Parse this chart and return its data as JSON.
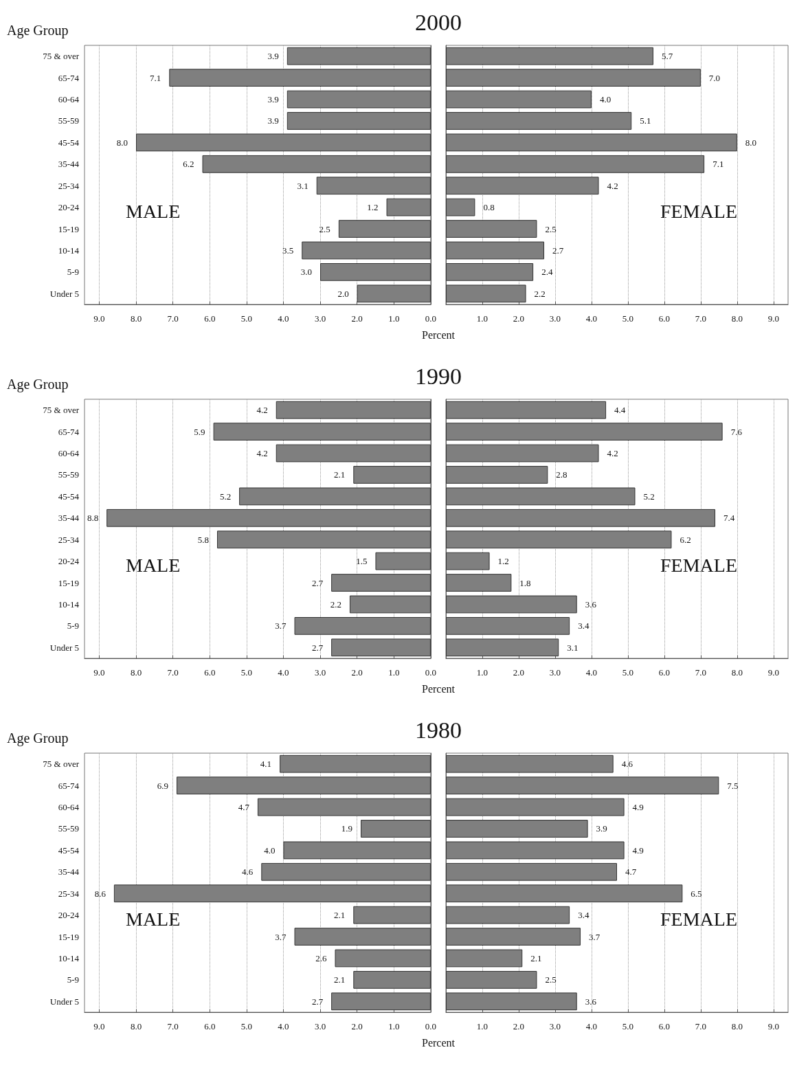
{
  "chart_data": [
    {
      "type": "bar",
      "orientation": "horizontal",
      "title": "2000",
      "ylabel": "Age Group",
      "xlabel": "Percent",
      "grid": "x",
      "categories": [
        "75 & over",
        "65-74",
        "60-64",
        "55-59",
        "45-54",
        "35-44",
        "25-34",
        "20-24",
        "15-19",
        "10-14",
        "5-9",
        "Under 5"
      ],
      "xlim": [
        9.4,
        0
      ],
      "xticks": [
        {
          "value": 9,
          "label": "9.0"
        },
        {
          "value": 8,
          "label": "8.0"
        },
        {
          "value": 7,
          "label": "7.0"
        },
        {
          "value": 6,
          "label": "6.0"
        },
        {
          "value": 5,
          "label": "5.0"
        },
        {
          "value": 4,
          "label": "4.0"
        },
        {
          "value": 3,
          "label": "3.0"
        },
        {
          "value": 2,
          "label": "2.0"
        },
        {
          "value": 1,
          "label": "1.0"
        },
        {
          "value": 0,
          "label": "0.0"
        }
      ],
      "series": [
        {
          "color": "#7f7f7f",
          "values": [
            3.9,
            7.1,
            3.9,
            3.9,
            8.0,
            6.2,
            3.1,
            1.2,
            2.5,
            3.5,
            3.0,
            2.0
          ],
          "value_labels": [
            "3.9",
            "7.1",
            "3.9",
            "3.9",
            "8.0",
            "6.2",
            "3.1",
            "1.2",
            "2.5",
            "3.5",
            "3.0",
            "2.0"
          ]
        }
      ],
      "annotations": [
        "MALE"
      ]
    },
    {
      "type": "bar",
      "orientation": "horizontal",
      "grid": "x",
      "categories": [
        null,
        null,
        null,
        null,
        null,
        null,
        null,
        null,
        null,
        null,
        null,
        null
      ],
      "xlim": [
        0,
        9.4
      ],
      "xticks": [
        {
          "value": 1,
          "label": "1.0"
        },
        {
          "value": 2,
          "label": "2.0"
        },
        {
          "value": 3,
          "label": "3.0"
        },
        {
          "value": 4,
          "label": "4.0"
        },
        {
          "value": 5,
          "label": "5.0"
        },
        {
          "value": 6,
          "label": "6.0"
        },
        {
          "value": 7,
          "label": "7.0"
        },
        {
          "value": 8,
          "label": "8.0"
        },
        {
          "value": 9,
          "label": "9.0"
        }
      ],
      "series": [
        {
          "color": "#7f7f7f",
          "values": [
            5.7,
            7.0,
            4.0,
            5.1,
            8.0,
            7.1,
            4.2,
            0.8,
            2.5,
            2.7,
            2.4,
            2.2
          ],
          "value_labels": [
            "5.7",
            "7.0",
            "4.0",
            "5.1",
            "8.0",
            "7.1",
            "4.2",
            "0.8",
            "2.5",
            "2.7",
            "2.4",
            "2.2"
          ]
        }
      ],
      "annotations": [
        "FEMALE"
      ]
    },
    {
      "type": "bar",
      "orientation": "horizontal",
      "title": "1990",
      "ylabel": "Age Group",
      "xlabel": "Percent",
      "grid": "x",
      "categories": [
        "75 & over",
        "65-74",
        "60-64",
        "55-59",
        "45-54",
        "35-44",
        "25-34",
        "20-24",
        "15-19",
        "10-14",
        "5-9",
        "Under 5"
      ],
      "xlim": [
        9.4,
        0
      ],
      "xticks": [
        {
          "value": 9,
          "label": "9.0"
        },
        {
          "value": 8,
          "label": "8.0"
        },
        {
          "value": 7,
          "label": "7.0"
        },
        {
          "value": 6,
          "label": "6.0"
        },
        {
          "value": 5,
          "label": "5.0"
        },
        {
          "value": 4,
          "label": "4.0"
        },
        {
          "value": 3,
          "label": "3.0"
        },
        {
          "value": 2,
          "label": "2.0"
        },
        {
          "value": 1,
          "label": "1.0"
        },
        {
          "value": 0,
          "label": "0.0"
        }
      ],
      "series": [
        {
          "color": "#7f7f7f",
          "values": [
            4.2,
            5.9,
            4.2,
            2.1,
            5.2,
            8.8,
            5.8,
            1.5,
            2.7,
            2.2,
            3.7,
            2.7
          ],
          "value_labels": [
            "4.2",
            "5.9",
            "4.2",
            "2.1",
            "5.2",
            "8.8",
            "5.8",
            "1.5",
            "2.7",
            "2.2",
            "3.7",
            "2.7"
          ]
        }
      ],
      "annotations": [
        "MALE"
      ]
    },
    {
      "type": "bar",
      "orientation": "horizontal",
      "grid": "x",
      "categories": [
        null,
        null,
        null,
        null,
        null,
        null,
        null,
        null,
        null,
        null,
        null,
        null
      ],
      "xlim": [
        0,
        9.4
      ],
      "xticks": [
        {
          "value": 1,
          "label": "1.0"
        },
        {
          "value": 2,
          "label": "2.0"
        },
        {
          "value": 3,
          "label": "3.0"
        },
        {
          "value": 4,
          "label": "4.0"
        },
        {
          "value": 5,
          "label": "5.0"
        },
        {
          "value": 6,
          "label": "6.0"
        },
        {
          "value": 7,
          "label": "7.0"
        },
        {
          "value": 8,
          "label": "8.0"
        },
        {
          "value": 9,
          "label": "9.0"
        }
      ],
      "series": [
        {
          "color": "#7f7f7f",
          "values": [
            4.4,
            7.6,
            4.2,
            2.8,
            5.2,
            7.4,
            6.2,
            1.2,
            1.8,
            3.6,
            3.4,
            3.1
          ],
          "value_labels": [
            "4.4",
            "7.6",
            "4.2",
            "2.8",
            "5.2",
            "7.4",
            "6.2",
            "1.2",
            "1.8",
            "3.6",
            "3.4",
            "3.1"
          ]
        }
      ],
      "annotations": [
        "FEMALE"
      ]
    },
    {
      "type": "bar",
      "orientation": "horizontal",
      "title": "1980",
      "ylabel": "Age Group",
      "xlabel": "Percent",
      "grid": "x",
      "categories": [
        "75 & over",
        "65-74",
        "60-64",
        "55-59",
        "45-54",
        "35-44",
        "25-34",
        "20-24",
        "15-19",
        "10-14",
        "5-9",
        "Under 5"
      ],
      "xlim": [
        9.4,
        0
      ],
      "xticks": [
        {
          "value": 9,
          "label": "9.0"
        },
        {
          "value": 8,
          "label": "8.0"
        },
        {
          "value": 7,
          "label": "7.0"
        },
        {
          "value": 6,
          "label": "6.0"
        },
        {
          "value": 5,
          "label": "5.0"
        },
        {
          "value": 4,
          "label": "4.0"
        },
        {
          "value": 3,
          "label": "3.0"
        },
        {
          "value": 2,
          "label": "2.0"
        },
        {
          "value": 1,
          "label": "1.0"
        },
        {
          "value": 0,
          "label": "0.0"
        }
      ],
      "series": [
        {
          "color": "#7f7f7f",
          "values": [
            4.1,
            6.9,
            4.7,
            1.9,
            4.0,
            4.6,
            8.6,
            2.1,
            3.7,
            2.6,
            2.1,
            2.7
          ],
          "value_labels": [
            "4.1",
            "6.9",
            "4.7",
            "1.9",
            "4.0",
            "4.6",
            "8.6",
            "2.1",
            "3.7",
            "2.6",
            "2.1",
            "2.7"
          ]
        }
      ],
      "annotations": [
        "MALE"
      ]
    },
    {
      "type": "bar",
      "orientation": "horizontal",
      "grid": "x",
      "categories": [
        null,
        null,
        null,
        null,
        null,
        null,
        null,
        null,
        null,
        null,
        null,
        null
      ],
      "xlim": [
        0,
        9.4
      ],
      "xticks": [
        {
          "value": 1,
          "label": "1.0"
        },
        {
          "value": 2,
          "label": "2.0"
        },
        {
          "value": 3,
          "label": "3.0"
        },
        {
          "value": 4,
          "label": "4.0"
        },
        {
          "value": 5,
          "label": "5.0"
        },
        {
          "value": 6,
          "label": "6.0"
        },
        {
          "value": 7,
          "label": "7.0"
        },
        {
          "value": 8,
          "label": "8.0"
        },
        {
          "value": 9,
          "label": "9.0"
        }
      ],
      "series": [
        {
          "color": "#7f7f7f",
          "values": [
            4.6,
            7.5,
            4.9,
            3.9,
            4.9,
            4.7,
            6.5,
            3.4,
            3.7,
            2.1,
            2.5,
            3.6
          ],
          "value_labels": [
            "4.6",
            "7.5",
            "4.9",
            "3.9",
            "4.9",
            "4.7",
            "6.5",
            "3.4",
            "3.7",
            "2.1",
            "2.5",
            "3.6"
          ]
        }
      ],
      "annotations": [
        "FEMALE"
      ]
    }
  ]
}
